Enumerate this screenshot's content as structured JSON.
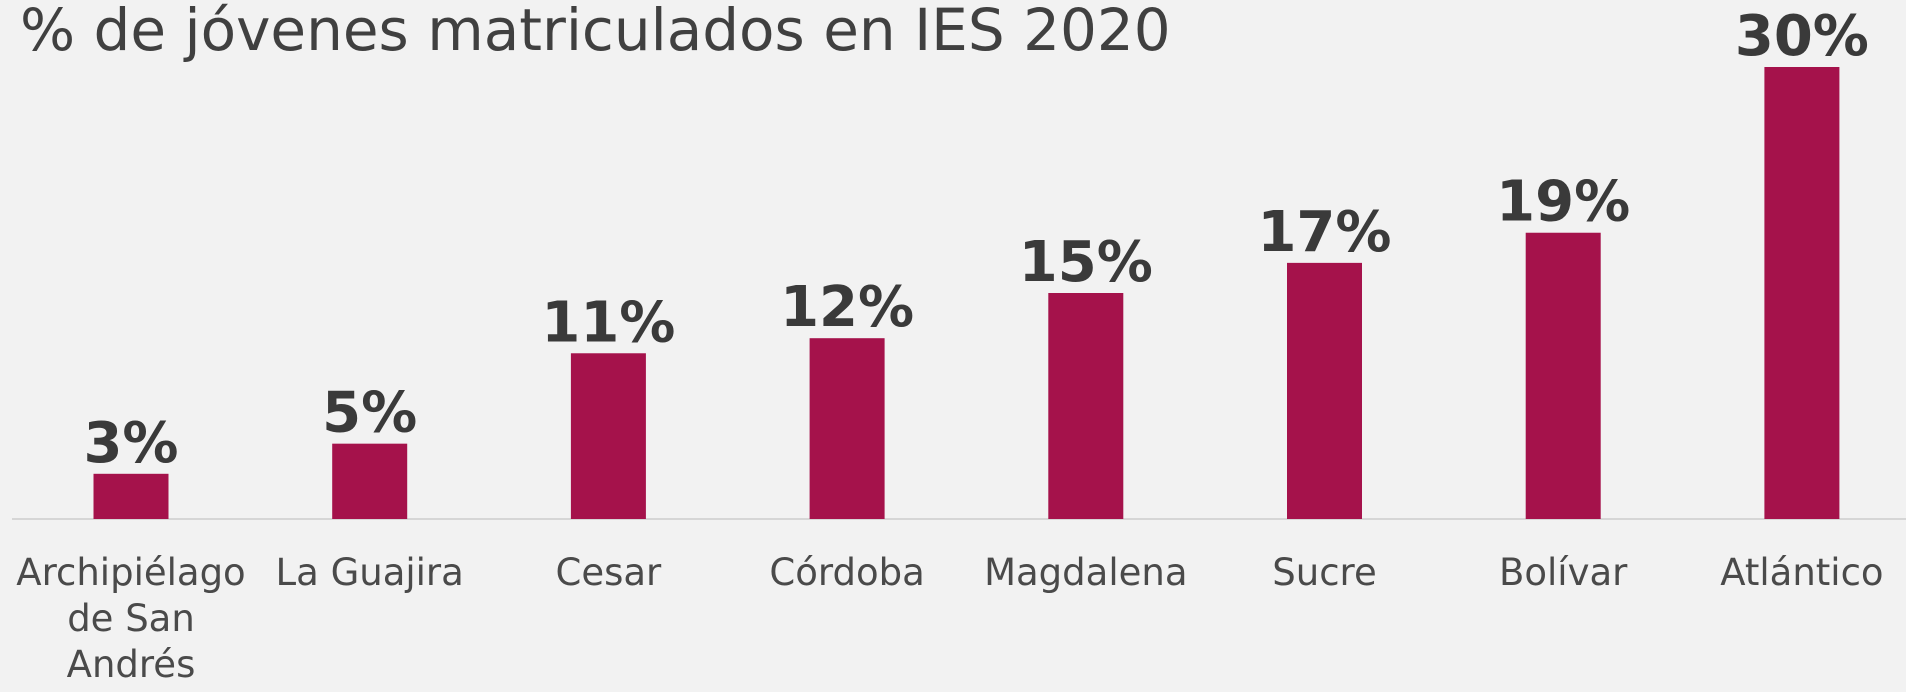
{
  "chart_data": {
    "type": "bar",
    "title": "% de jóvenes matriculados en IES 2020",
    "categories": [
      "Archipiélago de San Andrés",
      "La Guajira",
      "Cesar",
      "Córdoba",
      "Magdalena",
      "Sucre",
      "Bolívar",
      "Atlántico"
    ],
    "values": [
      3,
      5,
      11,
      12,
      15,
      17,
      19,
      30
    ],
    "value_labels": [
      "3%",
      "5%",
      "11%",
      "12%",
      "15%",
      "17%",
      "19%",
      "30%"
    ],
    "color": "#a5124b"
  }
}
